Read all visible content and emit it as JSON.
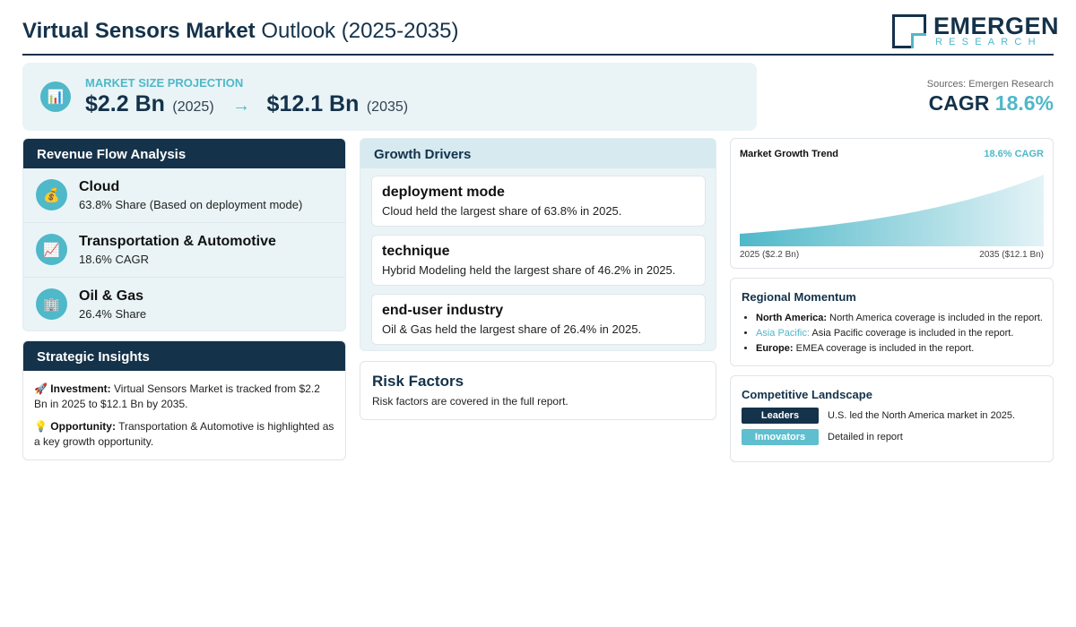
{
  "header": {
    "title_bold": "Virtual Sensors Market",
    "title_rest": "Outlook (2025-2035)",
    "logo_word": "EMERGEN",
    "logo_sub": "RESEARCH"
  },
  "projection": {
    "label": "MARKET SIZE PROJECTION",
    "start_value": "$2.2 Bn",
    "start_year": "(2025)",
    "arrow": "→",
    "end_value": "$12.1 Bn",
    "end_year": "(2035)",
    "icon": "bar-chart-icon"
  },
  "cagr": {
    "sources": "Sources: Emergen Research",
    "label": "CAGR",
    "value": "18.6%"
  },
  "revenue_flow": {
    "title": "Revenue Flow Analysis",
    "items": [
      {
        "icon": "money-bag-icon",
        "glyph": "💰",
        "name": "Cloud",
        "desc": "63.8% Share (Based on deployment mode)"
      },
      {
        "icon": "chart-increasing-icon",
        "glyph": "📈",
        "name": "Transportation & Automotive",
        "desc": "18.6% CAGR"
      },
      {
        "icon": "office-building-icon",
        "glyph": "🏢",
        "name": "Oil & Gas",
        "desc": "26.4% Share"
      }
    ]
  },
  "insights": {
    "title": "Strategic Insights",
    "items": [
      {
        "icon": "rocket-icon",
        "glyph": "🚀",
        "label": "Investment:",
        "text": "Virtual Sensors Market is tracked from $2.2 Bn in 2025 to $12.1 Bn by 2035."
      },
      {
        "icon": "light-bulb-icon",
        "glyph": "💡",
        "label": "Opportunity:",
        "text": "Transportation & Automotive is highlighted as a key growth opportunity."
      }
    ]
  },
  "drivers": {
    "title": "Growth Drivers",
    "items": [
      {
        "title": "deployment mode",
        "desc": "Cloud held the largest share of 63.8% in 2025."
      },
      {
        "title": "technique",
        "desc": "Hybrid Modeling held the largest share of 46.2% in 2025."
      },
      {
        "title": "end-user industry",
        "desc": "Oil & Gas held the largest share of 26.4% in 2025."
      }
    ]
  },
  "risk": {
    "title": "Risk Factors",
    "desc": "Risk factors are covered in the full report."
  },
  "chart_data": {
    "type": "area",
    "title": "Market Growth Trend",
    "badge": "18.6% CAGR",
    "x": [
      2025,
      2035
    ],
    "values": [
      2.2,
      12.1
    ],
    "start_label": "2025 ($2.2 Bn)",
    "end_label": "2035 ($12.1 Bn)",
    "colors": {
      "fill_start": "#4fb8c9",
      "fill_end": "#e3f3f6"
    }
  },
  "regional": {
    "title": "Regional Momentum",
    "items": [
      {
        "label": "North America:",
        "text": "North America coverage is included in the report.",
        "accent": false
      },
      {
        "label": "Asia Pacific:",
        "text": "Asia Pacific coverage is included in the report.",
        "accent": true
      },
      {
        "label": "Europe:",
        "text": "EMEA coverage is included in the report.",
        "accent": false
      }
    ]
  },
  "competitive": {
    "title": "Competitive Landscape",
    "rows": [
      {
        "badge": "Leaders",
        "text": "U.S. led the North America market in 2025."
      },
      {
        "badge": "Innovators",
        "text": "Detailed in report"
      }
    ]
  }
}
